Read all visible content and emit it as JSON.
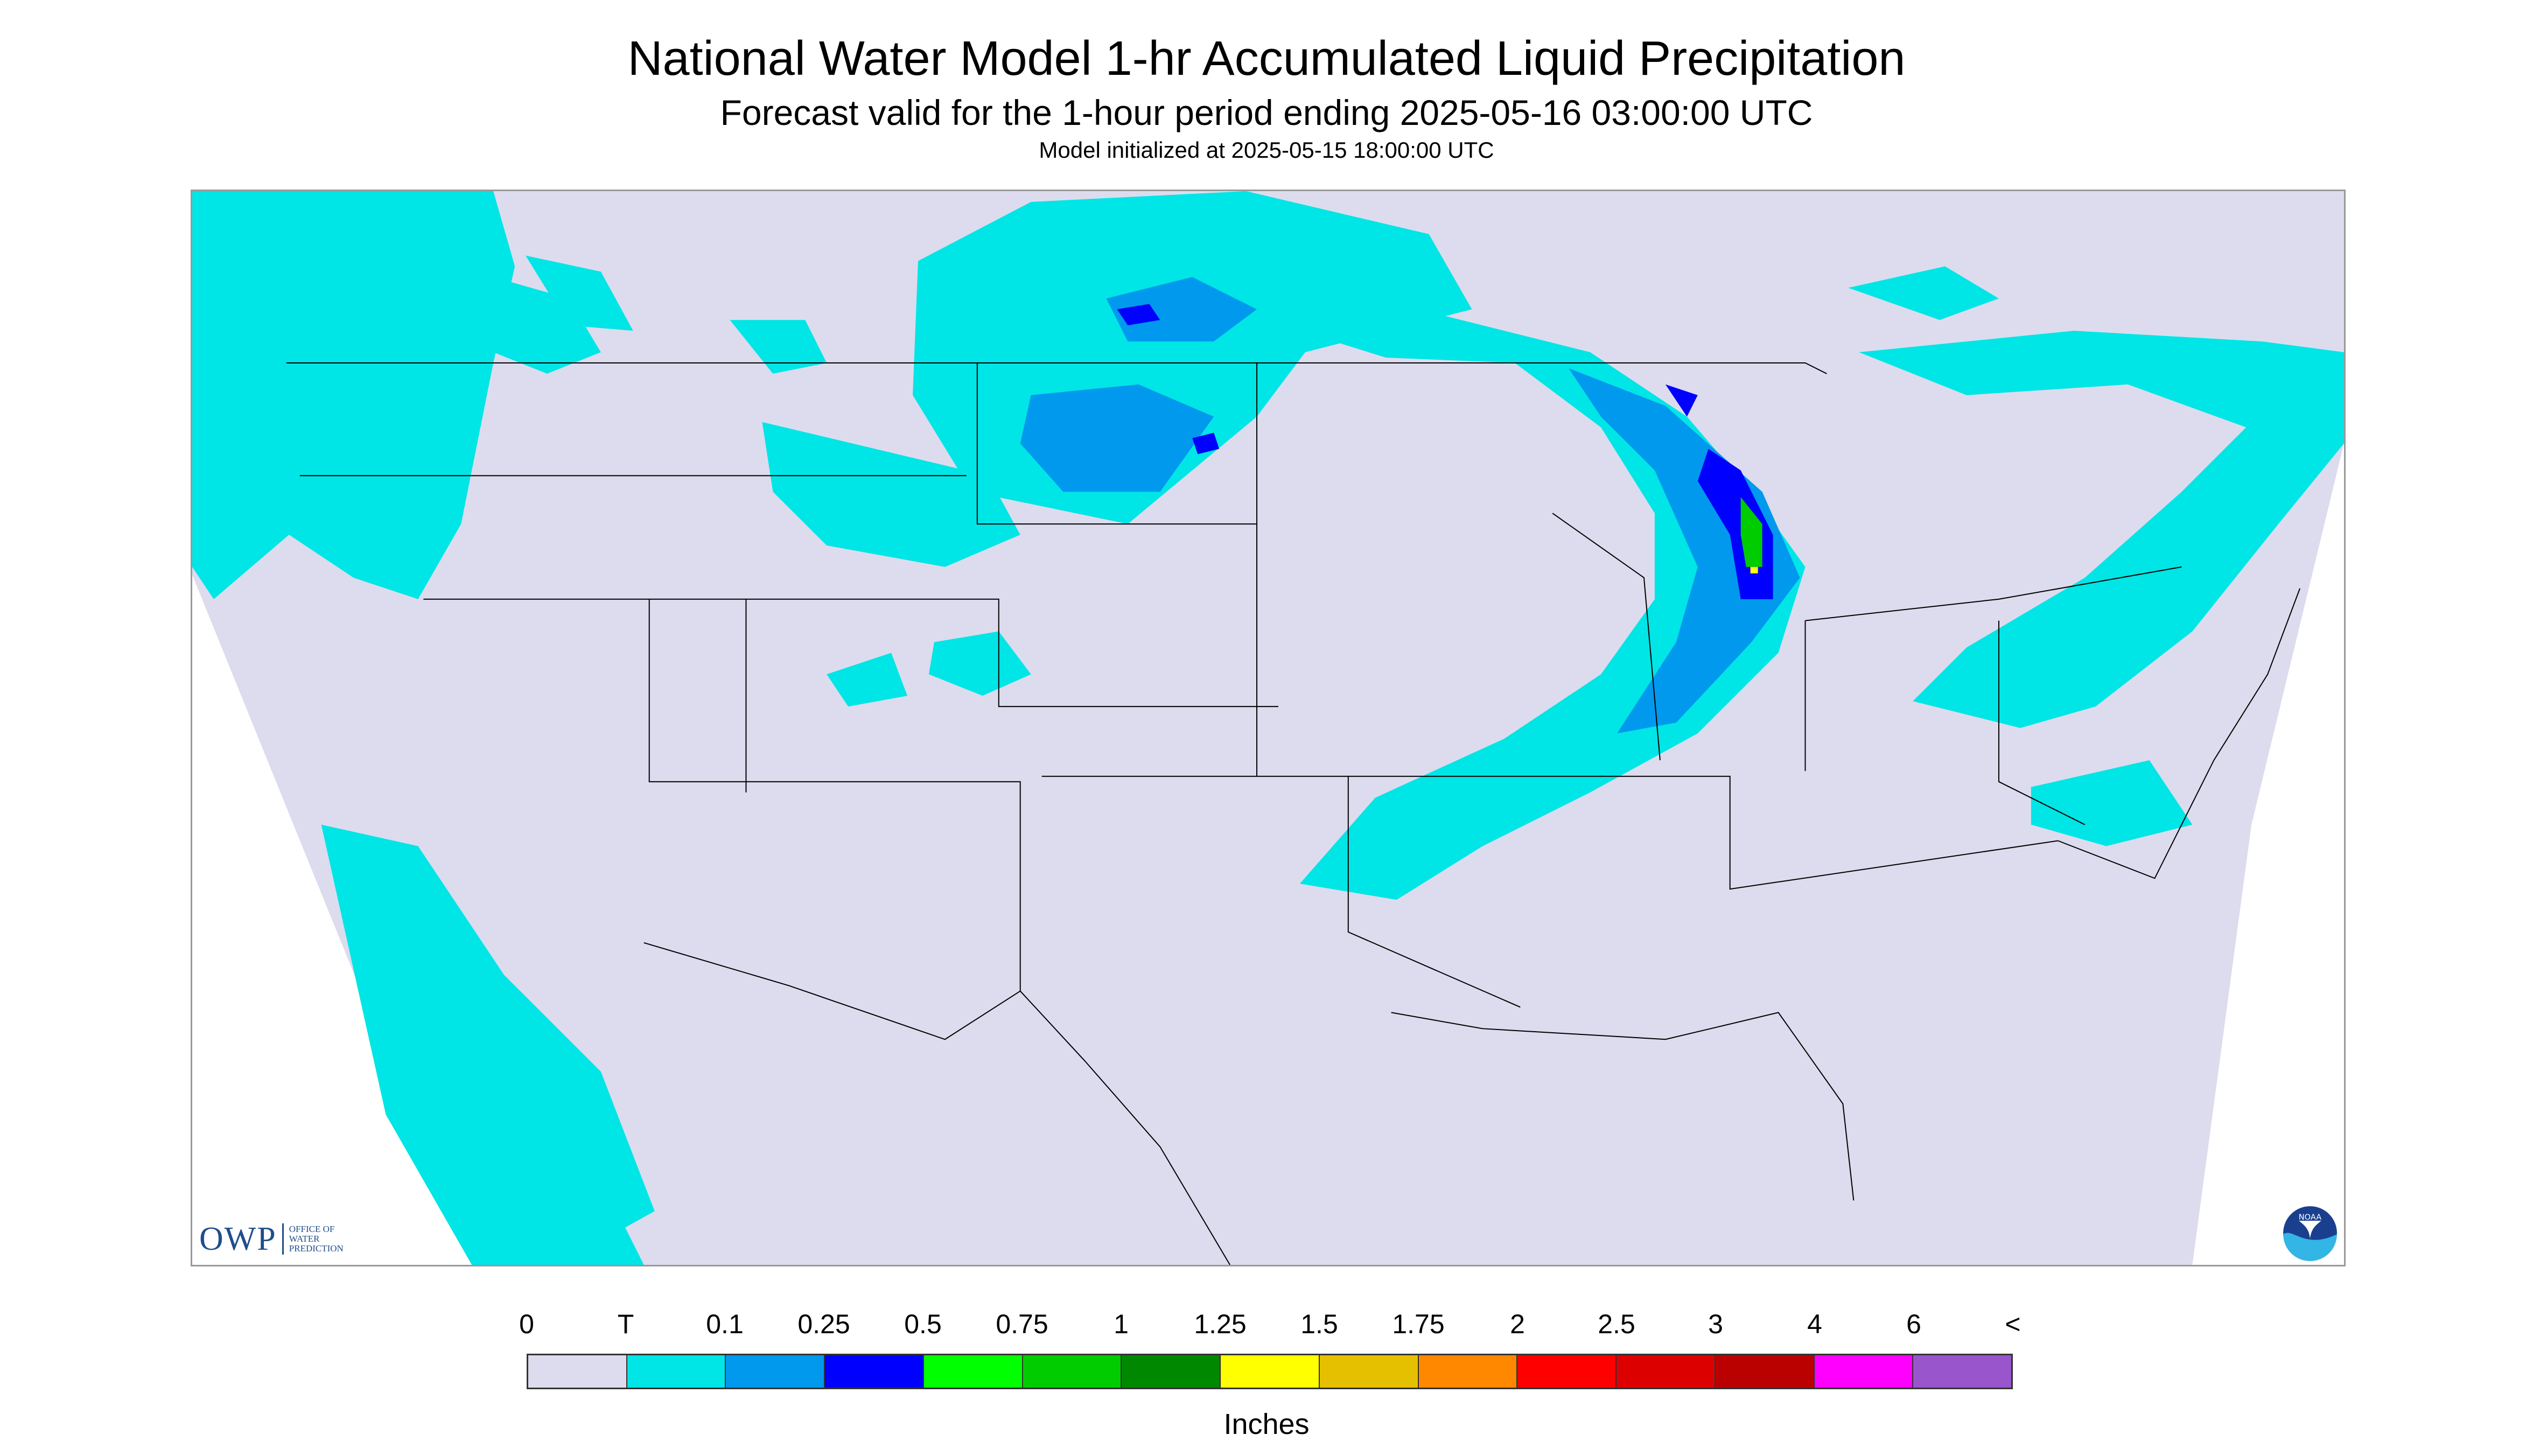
{
  "header": {
    "title": "National Water Model 1-hr Accumulated Liquid Precipitation",
    "subtitle": "Forecast valid for the 1-hour period ending 2025-05-16 03:00:00 UTC",
    "init_line": "Model initialized at 2025-05-15 18:00:00 UTC"
  },
  "logos": {
    "owp_mark": "OWP",
    "owp_line1": "OFFICE OF",
    "owp_line2": "WATER",
    "owp_line3": "PREDICTION",
    "noaa_text": "NOAA"
  },
  "legend": {
    "tick_labels": [
      "0",
      "T",
      "0.1",
      "0.25",
      "0.5",
      "0.75",
      "1",
      "1.25",
      "1.5",
      "1.75",
      "2",
      "2.5",
      "3",
      "4",
      "6",
      "<"
    ],
    "colors": [
      "#dcdcee",
      "#00e5e5",
      "#0099ee",
      "#0000ff",
      "#00ff00",
      "#00cc00",
      "#008800",
      "#ffff00",
      "#e5c000",
      "#ff8800",
      "#ff0000",
      "#dd0000",
      "#bb0000",
      "#ff00ff",
      "#9955cc"
    ],
    "units": "Inches"
  },
  "map_colors": {
    "domain_fill": "#dcdcee",
    "outside": "#ffffff",
    "trace": "#00e5e5",
    "light": "#0099ee",
    "heavy": "#0000ff",
    "green": "#00cc00",
    "yellow": "#ffff00",
    "borders": "#000000"
  }
}
